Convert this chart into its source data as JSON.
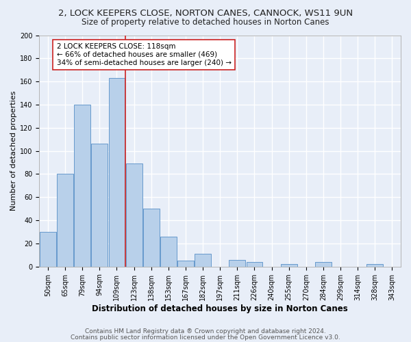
{
  "title": "2, LOCK KEEPERS CLOSE, NORTON CANES, CANNOCK, WS11 9UN",
  "subtitle": "Size of property relative to detached houses in Norton Canes",
  "xlabel": "Distribution of detached houses by size in Norton Canes",
  "ylabel": "Number of detached properties",
  "categories": [
    "50sqm",
    "65sqm",
    "79sqm",
    "94sqm",
    "109sqm",
    "123sqm",
    "138sqm",
    "153sqm",
    "167sqm",
    "182sqm",
    "197sqm",
    "211sqm",
    "226sqm",
    "240sqm",
    "255sqm",
    "270sqm",
    "284sqm",
    "299sqm",
    "314sqm",
    "328sqm",
    "343sqm"
  ],
  "values": [
    30,
    80,
    140,
    106,
    163,
    89,
    50,
    26,
    5,
    11,
    0,
    6,
    4,
    0,
    2,
    0,
    4,
    0,
    0,
    2,
    0
  ],
  "bar_color": "#b8d0ea",
  "bar_edge_color": "#6699cc",
  "vline_color": "#cc2222",
  "annotation_text": "2 LOCK KEEPERS CLOSE: 118sqm\n← 66% of detached houses are smaller (469)\n34% of semi-detached houses are larger (240) →",
  "annotation_box_color": "white",
  "annotation_box_edge_color": "#cc2222",
  "ylim": [
    0,
    200
  ],
  "yticks": [
    0,
    20,
    40,
    60,
    80,
    100,
    120,
    140,
    160,
    180,
    200
  ],
  "footer1": "Contains HM Land Registry data ® Crown copyright and database right 2024.",
  "footer2": "Contains public sector information licensed under the Open Government Licence v3.0.",
  "background_color": "#e8eef8",
  "grid_color": "#ffffff",
  "title_fontsize": 9.5,
  "subtitle_fontsize": 8.5,
  "xlabel_fontsize": 8.5,
  "ylabel_fontsize": 8,
  "tick_fontsize": 7,
  "annotation_fontsize": 7.5,
  "footer_fontsize": 6.5
}
